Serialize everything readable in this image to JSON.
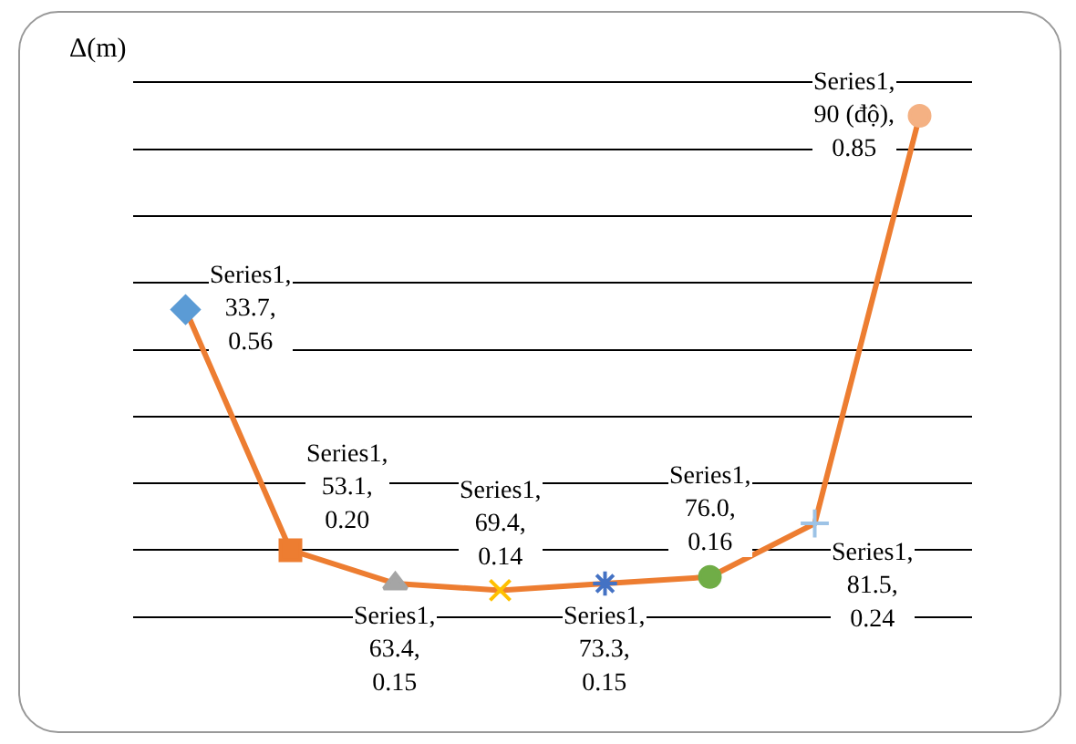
{
  "chart_data": {
    "type": "line",
    "ylabel": "Δ(m)",
    "categories": [
      null,
      null,
      null,
      null,
      null,
      null,
      null,
      null
    ],
    "series": [
      {
        "color": "#ed7d31",
        "colors": [
          "#5b9bd5",
          "#ed7d31",
          "#a5a5a5",
          "#ffc000",
          "#4472c4",
          "#70ad47",
          "#9dc3e6",
          "#f4b183"
        ],
        "values": [
          0.56,
          0.2,
          0.15,
          0.14,
          0.15,
          0.16,
          0.24,
          0.85
        ],
        "value_labels": [
          "Series1, 33.7, 0.56",
          "Series1, 53.1, 0.20",
          "Series1, 63.4, 0.15",
          "Series1, 69.4, 0.14",
          "Series1, 73.3, 0.15",
          "Series1, 76.0, 0.16",
          "Series1, 81.5, 0.24",
          "Series1, 90 (độ), 0.85"
        ]
      }
    ],
    "grid": "y",
    "tick_labels": false,
    "marker": "diamond",
    "line_style": "solid"
  }
}
